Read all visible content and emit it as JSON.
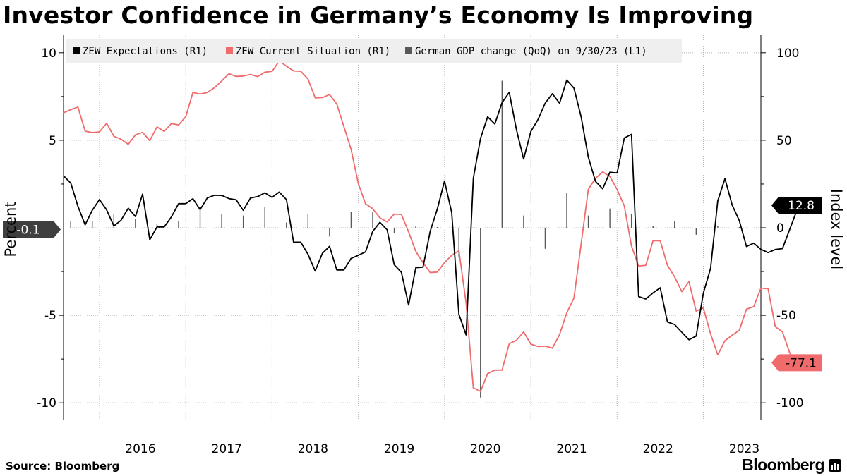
{
  "title": "Investor Confidence in Germany’s Economy Is Improving",
  "source": "Source: Bloomberg",
  "brand": "Bloomberg",
  "chart_data": {
    "type": "line",
    "left_axis": {
      "label": "Percent",
      "ticks": [
        10,
        5,
        -5,
        -10
      ],
      "range": [
        -11,
        11
      ]
    },
    "right_axis": {
      "label": "Index level",
      "ticks": [
        100,
        50,
        0,
        -50,
        -100
      ],
      "range": [
        -110,
        110
      ]
    },
    "x_axis": {
      "labels": [
        "2016",
        "2017",
        "2018",
        "2019",
        "2020",
        "2021",
        "2022",
        "2023"
      ],
      "range": [
        "2015-08",
        "2023-09"
      ]
    },
    "legend": [
      "ZEW Expectations (R1)",
      "ZEW Current Situation (R1)",
      "German GDP change (QoQ) on 9/30/23 (L1)"
    ],
    "colors": {
      "expectations": "#000000",
      "current": "#f06b6b",
      "gdp": "#595959"
    },
    "end_labels": {
      "expectations": "12.8",
      "current": "-77.1",
      "gdp": "-0.1"
    },
    "series": [
      {
        "name": "ZEW Expectations (R1)",
        "axis": "right",
        "start": "2015-08",
        "values": [
          29.7,
          25.6,
          12.3,
          1.7,
          10.0,
          16.1,
          10.2,
          1.0,
          4.3,
          11.2,
          6.4,
          19.2,
          -6.8,
          0.5,
          0.5,
          6.2,
          13.8,
          13.8,
          16.6,
          10.4,
          17.1,
          18.6,
          18.5,
          16.7,
          16.0,
          10.0,
          17.0,
          17.8,
          20.0,
          17.4,
          20.4,
          16.1,
          -8.2,
          -8.2,
          -15.1,
          -24.7,
          -14.6,
          -10.6,
          -24.1,
          -24.1,
          -17.5,
          -15.7,
          -13.8,
          -2.1,
          3.1,
          -1.1,
          -21.1,
          -25.5,
          -44.1,
          -22.8,
          -22.5,
          -2.0,
          10.7,
          26.7,
          8.7,
          -49.5,
          -61.2,
          28.2,
          51.0,
          63.4,
          59.3,
          71.5,
          77.4,
          56.1,
          39.3,
          55.0,
          61.8,
          71.2,
          76.6,
          71.2,
          84.4,
          79.8,
          63.3,
          40.4,
          26.5,
          22.3,
          31.7,
          31.3,
          51.3,
          53.4,
          -39.3,
          -40.7,
          -37.2,
          -34.3,
          -53.8,
          -55.3,
          -59.7,
          -64.0,
          -61.9,
          -37.4,
          -23.3,
          15.4,
          28.1,
          13.0,
          4.1,
          -10.7,
          -8.8,
          -12.3,
          -14.2,
          -12.4,
          -11.9,
          -1.1,
          9.8,
          12.8
        ]
      },
      {
        "name": "ZEW Current Situation (R1)",
        "axis": "right",
        "start": "2015-08",
        "values": [
          65.7,
          67.5,
          69.0,
          55.2,
          54.4,
          54.8,
          59.7,
          52.3,
          50.6,
          47.7,
          53.1,
          54.5,
          49.8,
          57.6,
          55.1,
          59.5,
          58.8,
          63.5,
          77.3,
          76.4,
          77.3,
          80.1,
          83.9,
          88.0,
          86.5,
          86.7,
          87.6,
          86.4,
          88.9,
          89.4,
          95.2,
          92.3,
          89.6,
          89.4,
          85.0,
          74.2,
          74.4,
          76.1,
          70.7,
          57.8,
          44.8,
          25.3,
          13.7,
          10.9,
          5.7,
          3.4,
          7.8,
          7.6,
          -2.4,
          -13.5,
          -19.9,
          -25.6,
          -25.3,
          -19.9,
          -15.7,
          -13.1,
          -43.1,
          -91.5,
          -93.5,
          -83.3,
          -81.3,
          -81.3,
          -66.2,
          -64.3,
          -59.5,
          -66.5,
          -67.8,
          -67.6,
          -68.8,
          -61.0,
          -48.6,
          -40.1,
          -9.1,
          21.9,
          28.3,
          31.9,
          29.3,
          21.9,
          12.5,
          -10.4,
          -21.9,
          -21.4,
          -7.4,
          -7.4,
          -21.4,
          -28.1,
          -36.5,
          -30.8,
          -47.6,
          -45.8,
          -60.5,
          -72.6,
          -64.5,
          -61.4,
          -58.6,
          -46.5,
          -45.1,
          -34.5,
          -34.8,
          -56.5,
          -59.5,
          -71.3,
          -79.4,
          -79.6,
          -79.4,
          -77.1
        ]
      },
      {
        "name": "German GDP change (QoQ) on 9/30/23 (L1)",
        "axis": "left",
        "type": "bar",
        "dates": [
          "2015-09",
          "2015-12",
          "2016-03",
          "2016-06",
          "2016-09",
          "2016-12",
          "2017-03",
          "2017-06",
          "2017-09",
          "2017-12",
          "2018-03",
          "2018-06",
          "2018-09",
          "2018-12",
          "2019-03",
          "2019-06",
          "2019-09",
          "2019-12",
          "2020-03",
          "2020-06",
          "2020-09",
          "2020-12",
          "2021-03",
          "2021-06",
          "2021-09",
          "2021-12",
          "2022-03",
          "2022-06",
          "2022-09",
          "2022-12",
          "2023-03",
          "2023-06",
          "2023-09"
        ],
        "values": [
          0.4,
          0.4,
          0.8,
          0.5,
          0.2,
          0.4,
          1.2,
          0.8,
          0.7,
          1.2,
          0.3,
          0.8,
          -0.5,
          0.9,
          0.9,
          -0.3,
          0.1,
          0.0,
          -1.7,
          -9.7,
          8.4,
          0.7,
          -1.2,
          2.0,
          0.7,
          1.1,
          0.8,
          0.1,
          0.4,
          -0.4,
          0.1,
          0.0,
          -0.1
        ]
      }
    ]
  }
}
